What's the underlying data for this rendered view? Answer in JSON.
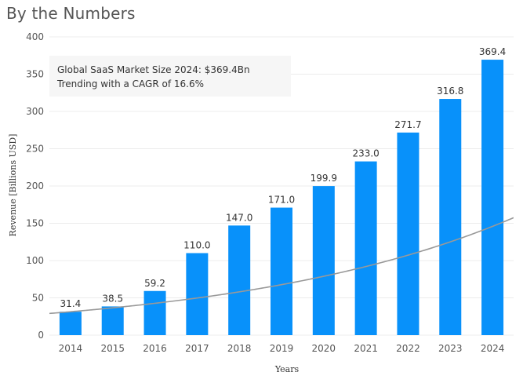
{
  "page": {
    "title": "By the Numbers"
  },
  "chart_data": {
    "type": "bar",
    "categories": [
      "2014",
      "2015",
      "2016",
      "2017",
      "2018",
      "2019",
      "2020",
      "2021",
      "2022",
      "2023",
      "2024"
    ],
    "values": [
      31.4,
      38.5,
      59.2,
      110.0,
      147.0,
      171.0,
      199.9,
      233.0,
      271.7,
      316.8,
      369.4
    ],
    "data_labels": [
      "31.4",
      "38.5",
      "59.2",
      "110.0",
      "147.0",
      "171.0",
      "199.9",
      "233.0",
      "271.7",
      "316.8",
      "369.4"
    ],
    "xlabel": "Years",
    "ylabel": "Revenue [Billions USD]",
    "ylim": [
      0,
      400
    ],
    "yticks": [
      0,
      50,
      100,
      150,
      200,
      250,
      300,
      350,
      400
    ],
    "grid": true,
    "bar_color": "#0891fa",
    "trendline": {
      "type": "exponential",
      "start_value": 31.4,
      "growth_rate": 0.166,
      "color": "#999999"
    },
    "annotation": {
      "line1": "Global SaaS Market Size 2024: $369.4Bn",
      "line2": "Trending with a CAGR of 16.6%"
    }
  }
}
